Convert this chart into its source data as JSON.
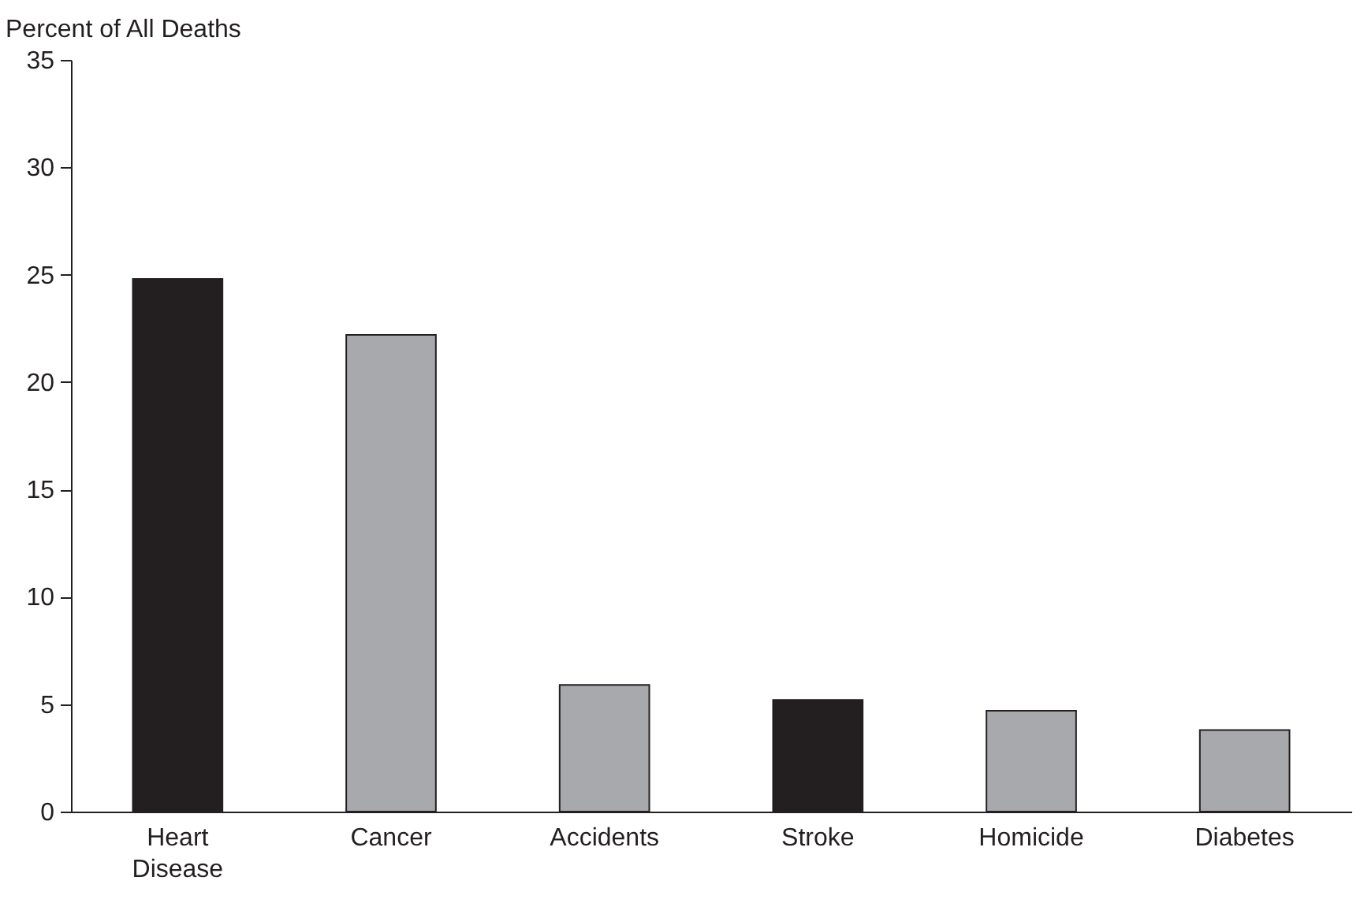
{
  "chart_data": {
    "type": "bar",
    "ylabel": "Percent of All Deaths",
    "categories": [
      "Heart Disease",
      "Cancer",
      "Accidents",
      "Stroke",
      "Homicide",
      "Diabetes"
    ],
    "values": [
      24.8,
      22.2,
      5.9,
      5.2,
      4.7,
      3.8
    ],
    "colors": [
      "#231f20",
      "#a7a9ac",
      "#a7a9ac",
      "#231f20",
      "#a7a9ac",
      "#a7a9ac"
    ],
    "ylim": [
      0,
      35
    ],
    "yticks": [
      0,
      5,
      10,
      15,
      20,
      25,
      30,
      35
    ],
    "grid": false,
    "legend": false
  }
}
